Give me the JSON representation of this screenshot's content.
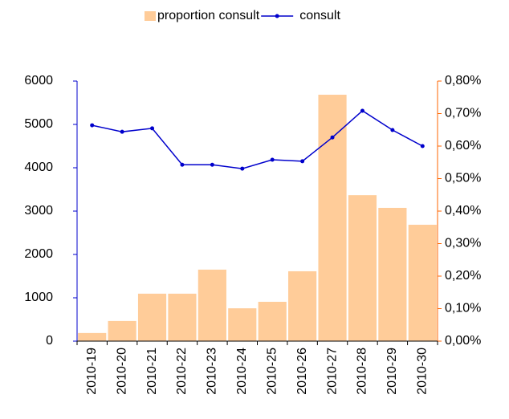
{
  "chart_data": {
    "type": "bar_line",
    "categories": [
      "2010-19",
      "2010-20",
      "2010-21",
      "2010-22",
      "2010-23",
      "2010-24",
      "2010-25",
      "2010-26",
      "2010-27",
      "2010-28",
      "2010-29",
      "2010-30"
    ],
    "series": [
      {
        "name": "proportion consult",
        "type": "bar",
        "axis": "y2",
        "color": "#ffcc99",
        "values": [
          0.025,
          0.062,
          0.146,
          0.146,
          0.22,
          0.101,
          0.121,
          0.215,
          0.758,
          0.449,
          0.41,
          0.358
        ]
      },
      {
        "name": "consult",
        "type": "line",
        "axis": "y",
        "color": "#0000cc",
        "values": [
          4980,
          4830,
          4910,
          4070,
          4070,
          3980,
          4185,
          4150,
          4700,
          5315,
          4870,
          4500
        ]
      }
    ],
    "ylim": [
      0,
      6000
    ],
    "yticks": [
      0,
      1000,
      2000,
      3000,
      4000,
      5000,
      6000
    ],
    "y2lim": [
      0,
      0.8
    ],
    "y2ticks": [
      {
        "value": 0,
        "label": "0,00%"
      },
      {
        "value": 0.1,
        "label": "0,10%"
      },
      {
        "value": 0.2,
        "label": "0,20%"
      },
      {
        "value": 0.3,
        "label": "0,30%"
      },
      {
        "value": 0.4,
        "label": "0,40%"
      },
      {
        "value": 0.5,
        "label": "0,50%"
      },
      {
        "value": 0.6,
        "label": "0,60%"
      },
      {
        "value": 0.7,
        "label": "0,70%"
      },
      {
        "value": 0.8,
        "label": "0,80%"
      }
    ],
    "y_axis_color": "#0000cc",
    "y2_axis_color": "#ff6600",
    "legend": "top"
  }
}
